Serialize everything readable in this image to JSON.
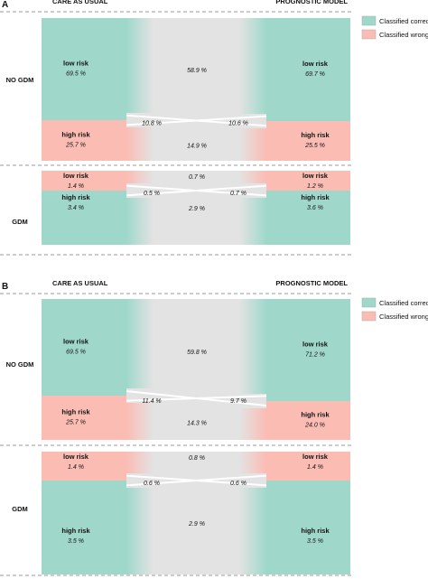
{
  "colors": {
    "correct": "#9fd8cb",
    "wrong": "#fbbcb4",
    "flow": "#e3e3e3",
    "divider": "#9a9a9a"
  },
  "panels": [
    {
      "letter": "A",
      "left_header": "CARE AS USUAL",
      "right_header": "PROGNOSTIC MODEL",
      "legend": {
        "correct": "Classified correct",
        "wrong": "Classified wrong"
      },
      "groups": [
        {
          "label": "NO GDM",
          "left_low": {
            "title": "low risk",
            "pct": "69.5 %"
          },
          "left_high": {
            "title": "high risk",
            "pct": "25.7 %"
          },
          "right_low": {
            "title": "low risk",
            "pct": "69.7 %"
          },
          "right_high": {
            "title": "high risk",
            "pct": "25.5 %"
          },
          "flows": {
            "low_low": "58.9 %",
            "cross_left": "10.8 %",
            "cross_right": "10.6 %",
            "high_high": "14.9 %"
          }
        },
        {
          "label": "GDM",
          "left_low": {
            "title": "low risk",
            "pct": "1.4 %"
          },
          "left_high": {
            "title": "high risk",
            "pct": "3.4 %"
          },
          "right_low": {
            "title": "low risk",
            "pct": "1.2 %"
          },
          "right_high": {
            "title": "high risk",
            "pct": "3.6 %"
          },
          "flows": {
            "low_low": "0.7 %",
            "cross_left": "0.5 %",
            "cross_right": "0.7 %",
            "high_high": "2.9 %"
          }
        }
      ]
    },
    {
      "letter": "B",
      "left_header": "CARE AS USUAL",
      "right_header": "PROGNOSTIC MODEL",
      "legend": {
        "correct": "Classified correct",
        "wrong": "Classified wrong"
      },
      "groups": [
        {
          "label": "NO GDM",
          "left_low": {
            "title": "low risk",
            "pct": "69.5 %"
          },
          "left_high": {
            "title": "high risk",
            "pct": "25.7 %"
          },
          "right_low": {
            "title": "low risk",
            "pct": "71.2 %"
          },
          "right_high": {
            "title": "high risk",
            "pct": "24.0 %"
          },
          "flows": {
            "low_low": "59.8 %",
            "cross_left": "11.4 %",
            "cross_right": "9.7 %",
            "high_high": "14.3 %"
          }
        },
        {
          "label": "GDM",
          "left_low": {
            "title": "low risk",
            "pct": "1.4 %"
          },
          "left_high": {
            "title": "high risk",
            "pct": "3.5 %"
          },
          "right_low": {
            "title": "low risk",
            "pct": "1.4 %"
          },
          "right_high": {
            "title": "high risk",
            "pct": "3.5 %"
          },
          "flows": {
            "low_low": "0.8 %",
            "cross_left": "0.6 %",
            "cross_right": "0.6 %",
            "high_high": "2.9 %"
          }
        }
      ]
    }
  ]
}
